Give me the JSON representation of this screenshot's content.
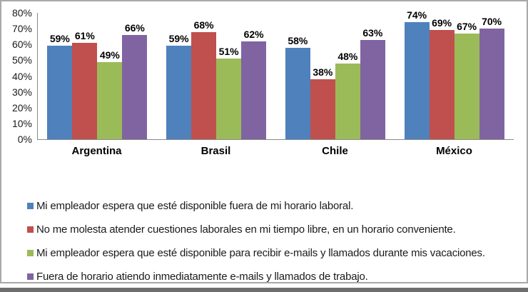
{
  "chart_data": {
    "type": "bar",
    "title": "",
    "xlabel": "",
    "ylabel": "",
    "categories": [
      "Argentina",
      "Brasil",
      "Chile",
      "México"
    ],
    "series": [
      {
        "name": "Mi empleador espera que esté disponible fuera de mi horario laboral.",
        "color": "#4F81BD",
        "values": [
          59,
          59,
          58,
          74
        ]
      },
      {
        "name": "No me molesta atender cuestiones laborales en mi tiempo libre, en un horario conveniente.",
        "color": "#C0504D",
        "values": [
          61,
          68,
          38,
          69
        ]
      },
      {
        "name": "Mi empleador espera que esté disponible para recibir e-mails y llamados durante mis vacaciones.",
        "color": "#9BBB59",
        "values": [
          49,
          51,
          48,
          67
        ]
      },
      {
        "name": "Fuera de horario atiendo inmediatamente e-mails y llamados de trabajo.",
        "color": "#8064A2",
        "values": [
          66,
          62,
          63,
          70
        ]
      }
    ],
    "ylim": [
      0,
      80
    ],
    "ytick_step": 10,
    "yticks": [
      "80%",
      "70%",
      "60%",
      "50%",
      "40%",
      "30%",
      "20%",
      "10%",
      "0%"
    ],
    "value_suffix": "%",
    "grid": false,
    "legend_position": "bottom",
    "bar_labels_bold": true
  },
  "frame": {
    "border_color": "#a9a9a9",
    "bottom_edge_color": "#6e6e6e",
    "background": "#ffffff"
  }
}
